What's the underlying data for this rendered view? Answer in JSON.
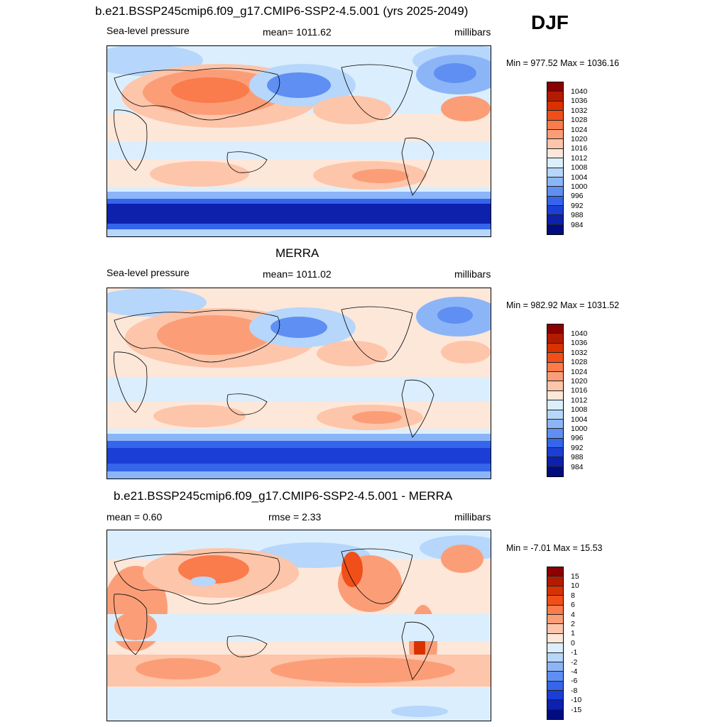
{
  "season": "DJF",
  "panels": [
    {
      "title": "b.e21.BSSP245cmip6.f09_g17.CMIP6-SSP2-4.5.001 (yrs 2025-2049)",
      "left_label": "Sea-level pressure",
      "center_label": "mean= 1011.62",
      "right_label": "millibars",
      "minmax": "Min = 977.52 Max = 1036.16"
    },
    {
      "title": "MERRA",
      "left_label": "Sea-level pressure",
      "center_label": "mean= 1011.02",
      "right_label": "millibars",
      "minmax": "Min = 982.92 Max = 1031.52"
    },
    {
      "title": "b.e21.BSSP245cmip6.f09_g17.CMIP6-SSP2-4.5.001 - MERRA",
      "left_label": "mean =   0.60",
      "center_label": "rmse =   2.33",
      "right_label": "millibars",
      "minmax": "Min =  -7.01 Max =  15.53"
    }
  ],
  "colorbars": {
    "absolute": {
      "labels": [
        "1040",
        "1036",
        "1032",
        "1028",
        "1024",
        "1020",
        "1016",
        "1012",
        "1008",
        "1004",
        "1000",
        "996",
        "992",
        "988",
        "984"
      ],
      "colors": [
        "#8b0000",
        "#b31b00",
        "#d83200",
        "#f04f1a",
        "#fa7b4b",
        "#fb9e78",
        "#fdc5aa",
        "#fde7d9",
        "#dbeefd",
        "#b6d6fb",
        "#8cb5f8",
        "#5f8ff2",
        "#3465ea",
        "#1b3fd6",
        "#0d21ad",
        "#000c80"
      ]
    },
    "difference": {
      "labels": [
        "15",
        "10",
        "8",
        "6",
        "4",
        "2",
        "1",
        "0",
        "-1",
        "-2",
        "-4",
        "-6",
        "-8",
        "-10",
        "-15"
      ],
      "colors": [
        "#8b0000",
        "#b31b00",
        "#d83200",
        "#f04f1a",
        "#fa7b4b",
        "#fb9e78",
        "#fdc5aa",
        "#fde7d9",
        "#dbeefd",
        "#b6d6fb",
        "#8cb5f8",
        "#5f8ff2",
        "#3465ea",
        "#1b3fd6",
        "#0d21ad",
        "#000c80"
      ]
    }
  }
}
